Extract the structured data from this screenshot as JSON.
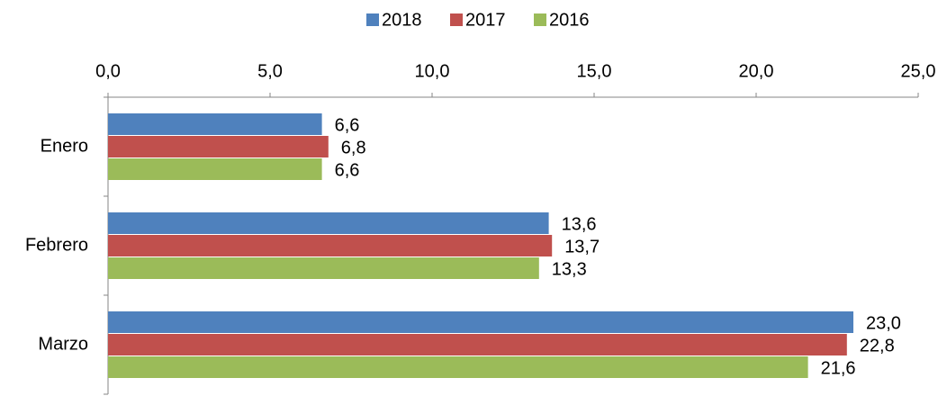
{
  "chart_data": {
    "type": "hbar",
    "categories": [
      "Enero",
      "Febrero",
      "Marzo"
    ],
    "series": [
      {
        "name": "2018",
        "color": "#4f81bd",
        "values": [
          6.6,
          13.6,
          23.0
        ],
        "value_labels": [
          "6,6",
          "13,6",
          "23,0"
        ]
      },
      {
        "name": "2017",
        "color": "#c0504d",
        "values": [
          6.8,
          13.7,
          22.8
        ],
        "value_labels": [
          "6,8",
          "13,7",
          "22,8"
        ]
      },
      {
        "name": "2016",
        "color": "#9bbb59",
        "values": [
          6.6,
          13.3,
          21.6
        ],
        "value_labels": [
          "6,6",
          "13,3",
          "21,6"
        ]
      }
    ],
    "xlim": [
      0,
      25
    ],
    "xticks": [
      {
        "value": 0,
        "label": "0,0"
      },
      {
        "value": 5,
        "label": "5,0"
      },
      {
        "value": 10,
        "label": "10,0"
      },
      {
        "value": 15,
        "label": "15,0"
      },
      {
        "value": 20,
        "label": "20,0"
      },
      {
        "value": 25,
        "label": "25,0"
      }
    ],
    "grid": false,
    "legend": "top"
  }
}
